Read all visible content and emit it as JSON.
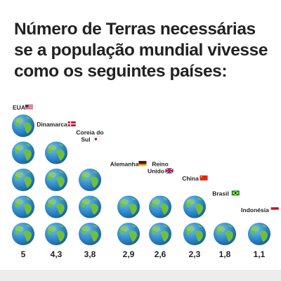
{
  "title": "Número de Terras necessárias se a população mundial vivesse como os seguintes países:",
  "chart_data": {
    "type": "bar",
    "unit": "globes",
    "categories": [
      "EUA",
      "Dinamarca",
      "Coreia do Sul",
      "Alemanha",
      "Reino Unido",
      "China",
      "Brasil",
      "Indonésia"
    ],
    "category_flags": [
      "us-flag",
      "dk-flag",
      "kr-flag",
      "de-flag",
      "gb-flag",
      "cn-flag",
      "br-flag",
      "id-flag"
    ],
    "values": [
      5,
      4.3,
      3.8,
      2.9,
      2.6,
      2.3,
      1.8,
      1.1
    ],
    "value_labels": [
      "5",
      "4,3",
      "3,8",
      "2,9",
      "2,6",
      "2,3",
      "1,8",
      "1,1"
    ],
    "ylim": [
      0,
      5
    ],
    "grid": false,
    "legend": "none"
  },
  "colors": {
    "ocean": "#2f88c9",
    "land": "#6fbf3f",
    "text": "#222222",
    "band": "#ededed"
  }
}
